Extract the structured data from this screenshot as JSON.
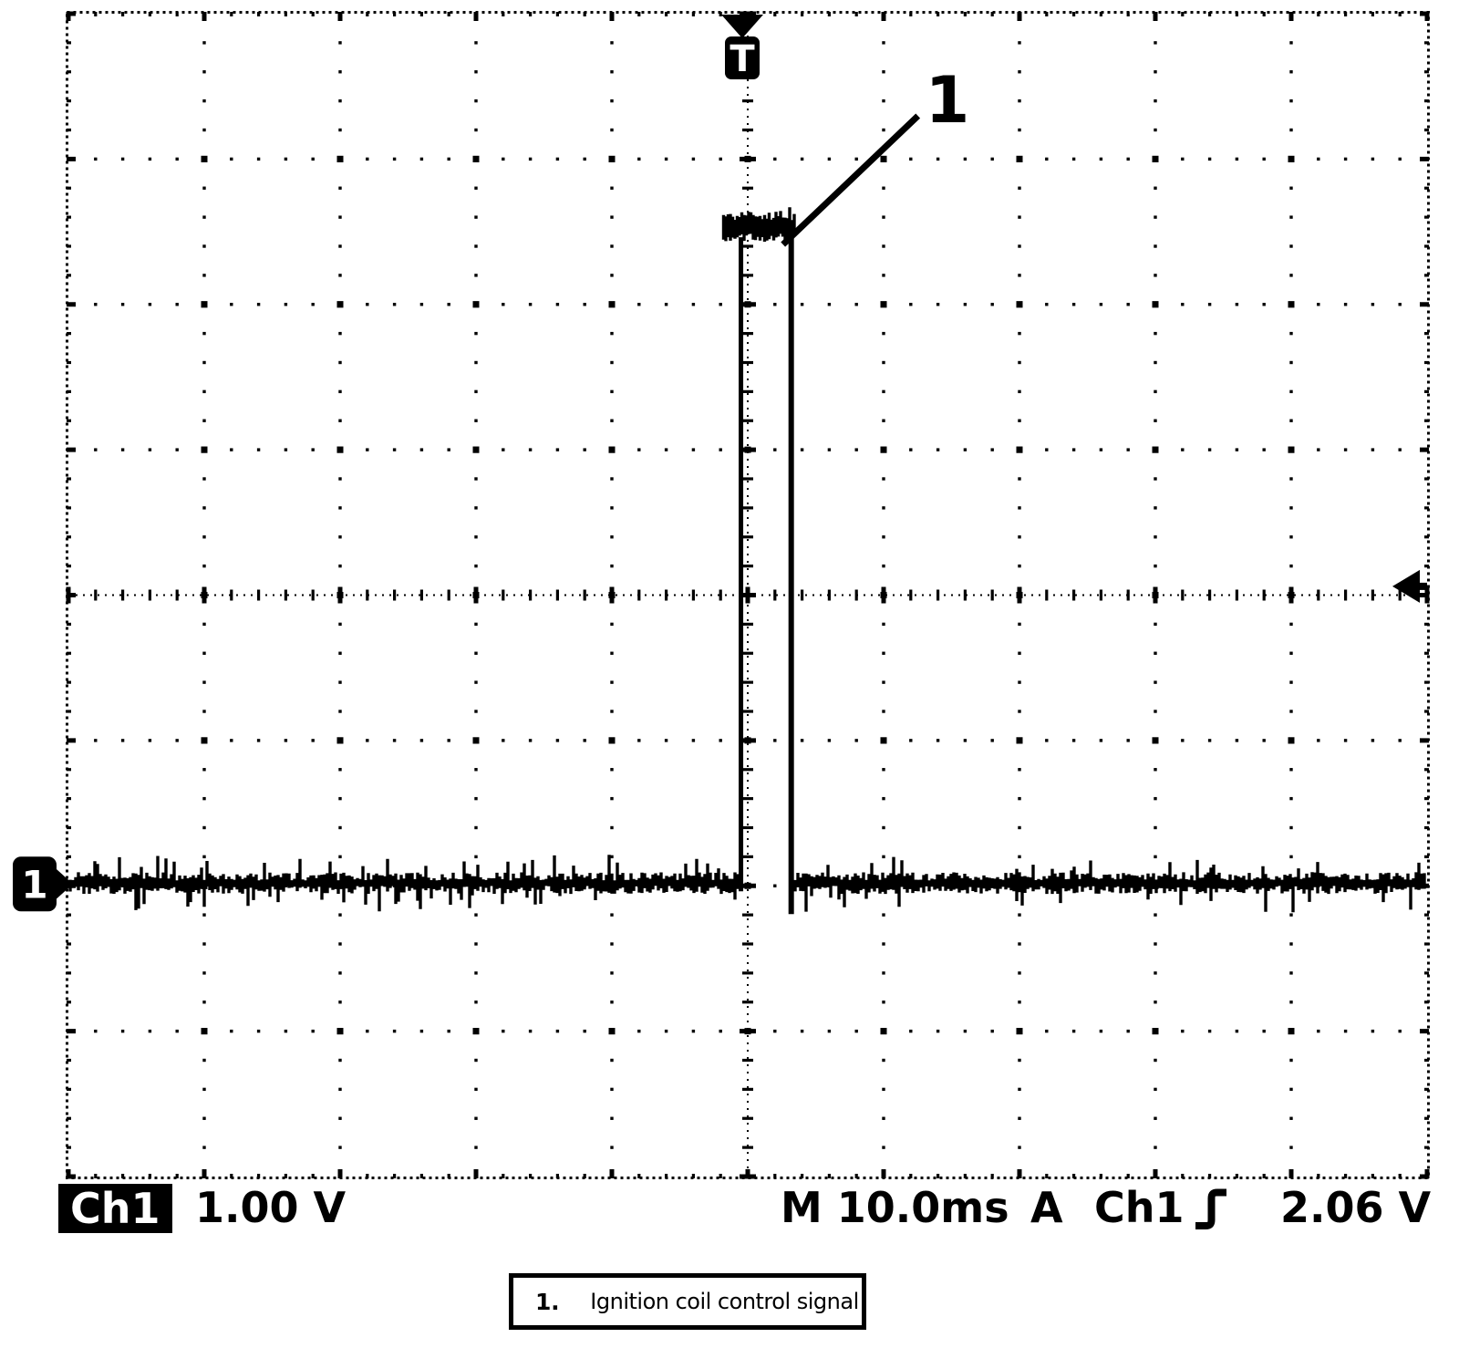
{
  "scope": {
    "trigger_flag": "T",
    "channel_marker": "1",
    "annotation": {
      "label": "1"
    },
    "readout": {
      "channel": "Ch1",
      "channel_scale": "1.00 V",
      "timebase": "M 10.0ms",
      "acquisition": "A",
      "trigger_source": "Ch1",
      "trigger_slope_icon": "rising-edge",
      "trigger_level": "2.06 V"
    },
    "caption": {
      "number": "1.",
      "text": "Ignition coil control signal"
    }
  },
  "chart_data": {
    "type": "line",
    "title": "Oscilloscope trace: ignition coil control signal",
    "xlabel": "Time (10.0 ms/div)",
    "ylabel": "Ch1 voltage (1.00 V/div)",
    "x_divisions": 10,
    "y_divisions": 8,
    "minor_ticks_per_div": 5,
    "time_per_div_ms": 10.0,
    "volts_per_div": 1.0,
    "ground_reference_div": -2,
    "grid": "dotted graticule, tick-marked center axes",
    "legend_position": "none",
    "series": [
      {
        "name": "Ch1",
        "description": "0 V noisy baseline with one positive rectangular pulse",
        "baseline_V": 0,
        "noise_Vpp": 0.2,
        "pulse": {
          "start_ms": -0.5,
          "width_ms": 3.7,
          "amplitude_V": 4.5
        }
      }
    ],
    "trigger": {
      "source": "Ch1",
      "level_V": 2.06,
      "slope": "rising",
      "position_ms": 0
    },
    "colors": {
      "trace": "#000000",
      "background": "#ffffff"
    }
  }
}
